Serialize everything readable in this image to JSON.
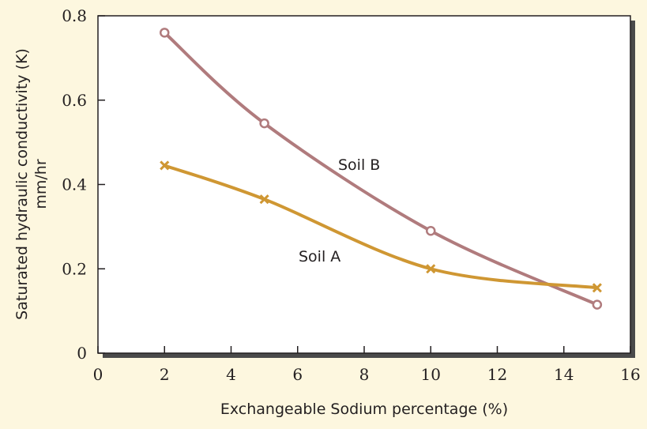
{
  "chart_data": {
    "type": "line",
    "xlabel": "Exchangeable Sodium percentage (%)",
    "ylabel": "Saturated hydraulic conductivity (K)",
    "ylabel_unit": "mm/hr",
    "xlim": [
      0,
      16
    ],
    "ylim": [
      0,
      0.8
    ],
    "x_ticks": [
      "0",
      "2",
      "4",
      "6",
      "8",
      "10",
      "12",
      "14",
      "16"
    ],
    "y_ticks": [
      "0",
      "0.2",
      "0.4",
      "0.6",
      "0.8"
    ],
    "grid": false,
    "series": [
      {
        "name": "Soil B",
        "marker": "circle",
        "color": "#b07b7d",
        "x": [
          2,
          5,
          10,
          15
        ],
        "y": [
          0.76,
          0.545,
          0.29,
          0.115
        ]
      },
      {
        "name": "Soil A",
        "marker": "x",
        "color": "#cf9733",
        "x": [
          2,
          5,
          10,
          15
        ],
        "y": [
          0.445,
          0.365,
          0.2,
          0.155
        ]
      }
    ]
  }
}
